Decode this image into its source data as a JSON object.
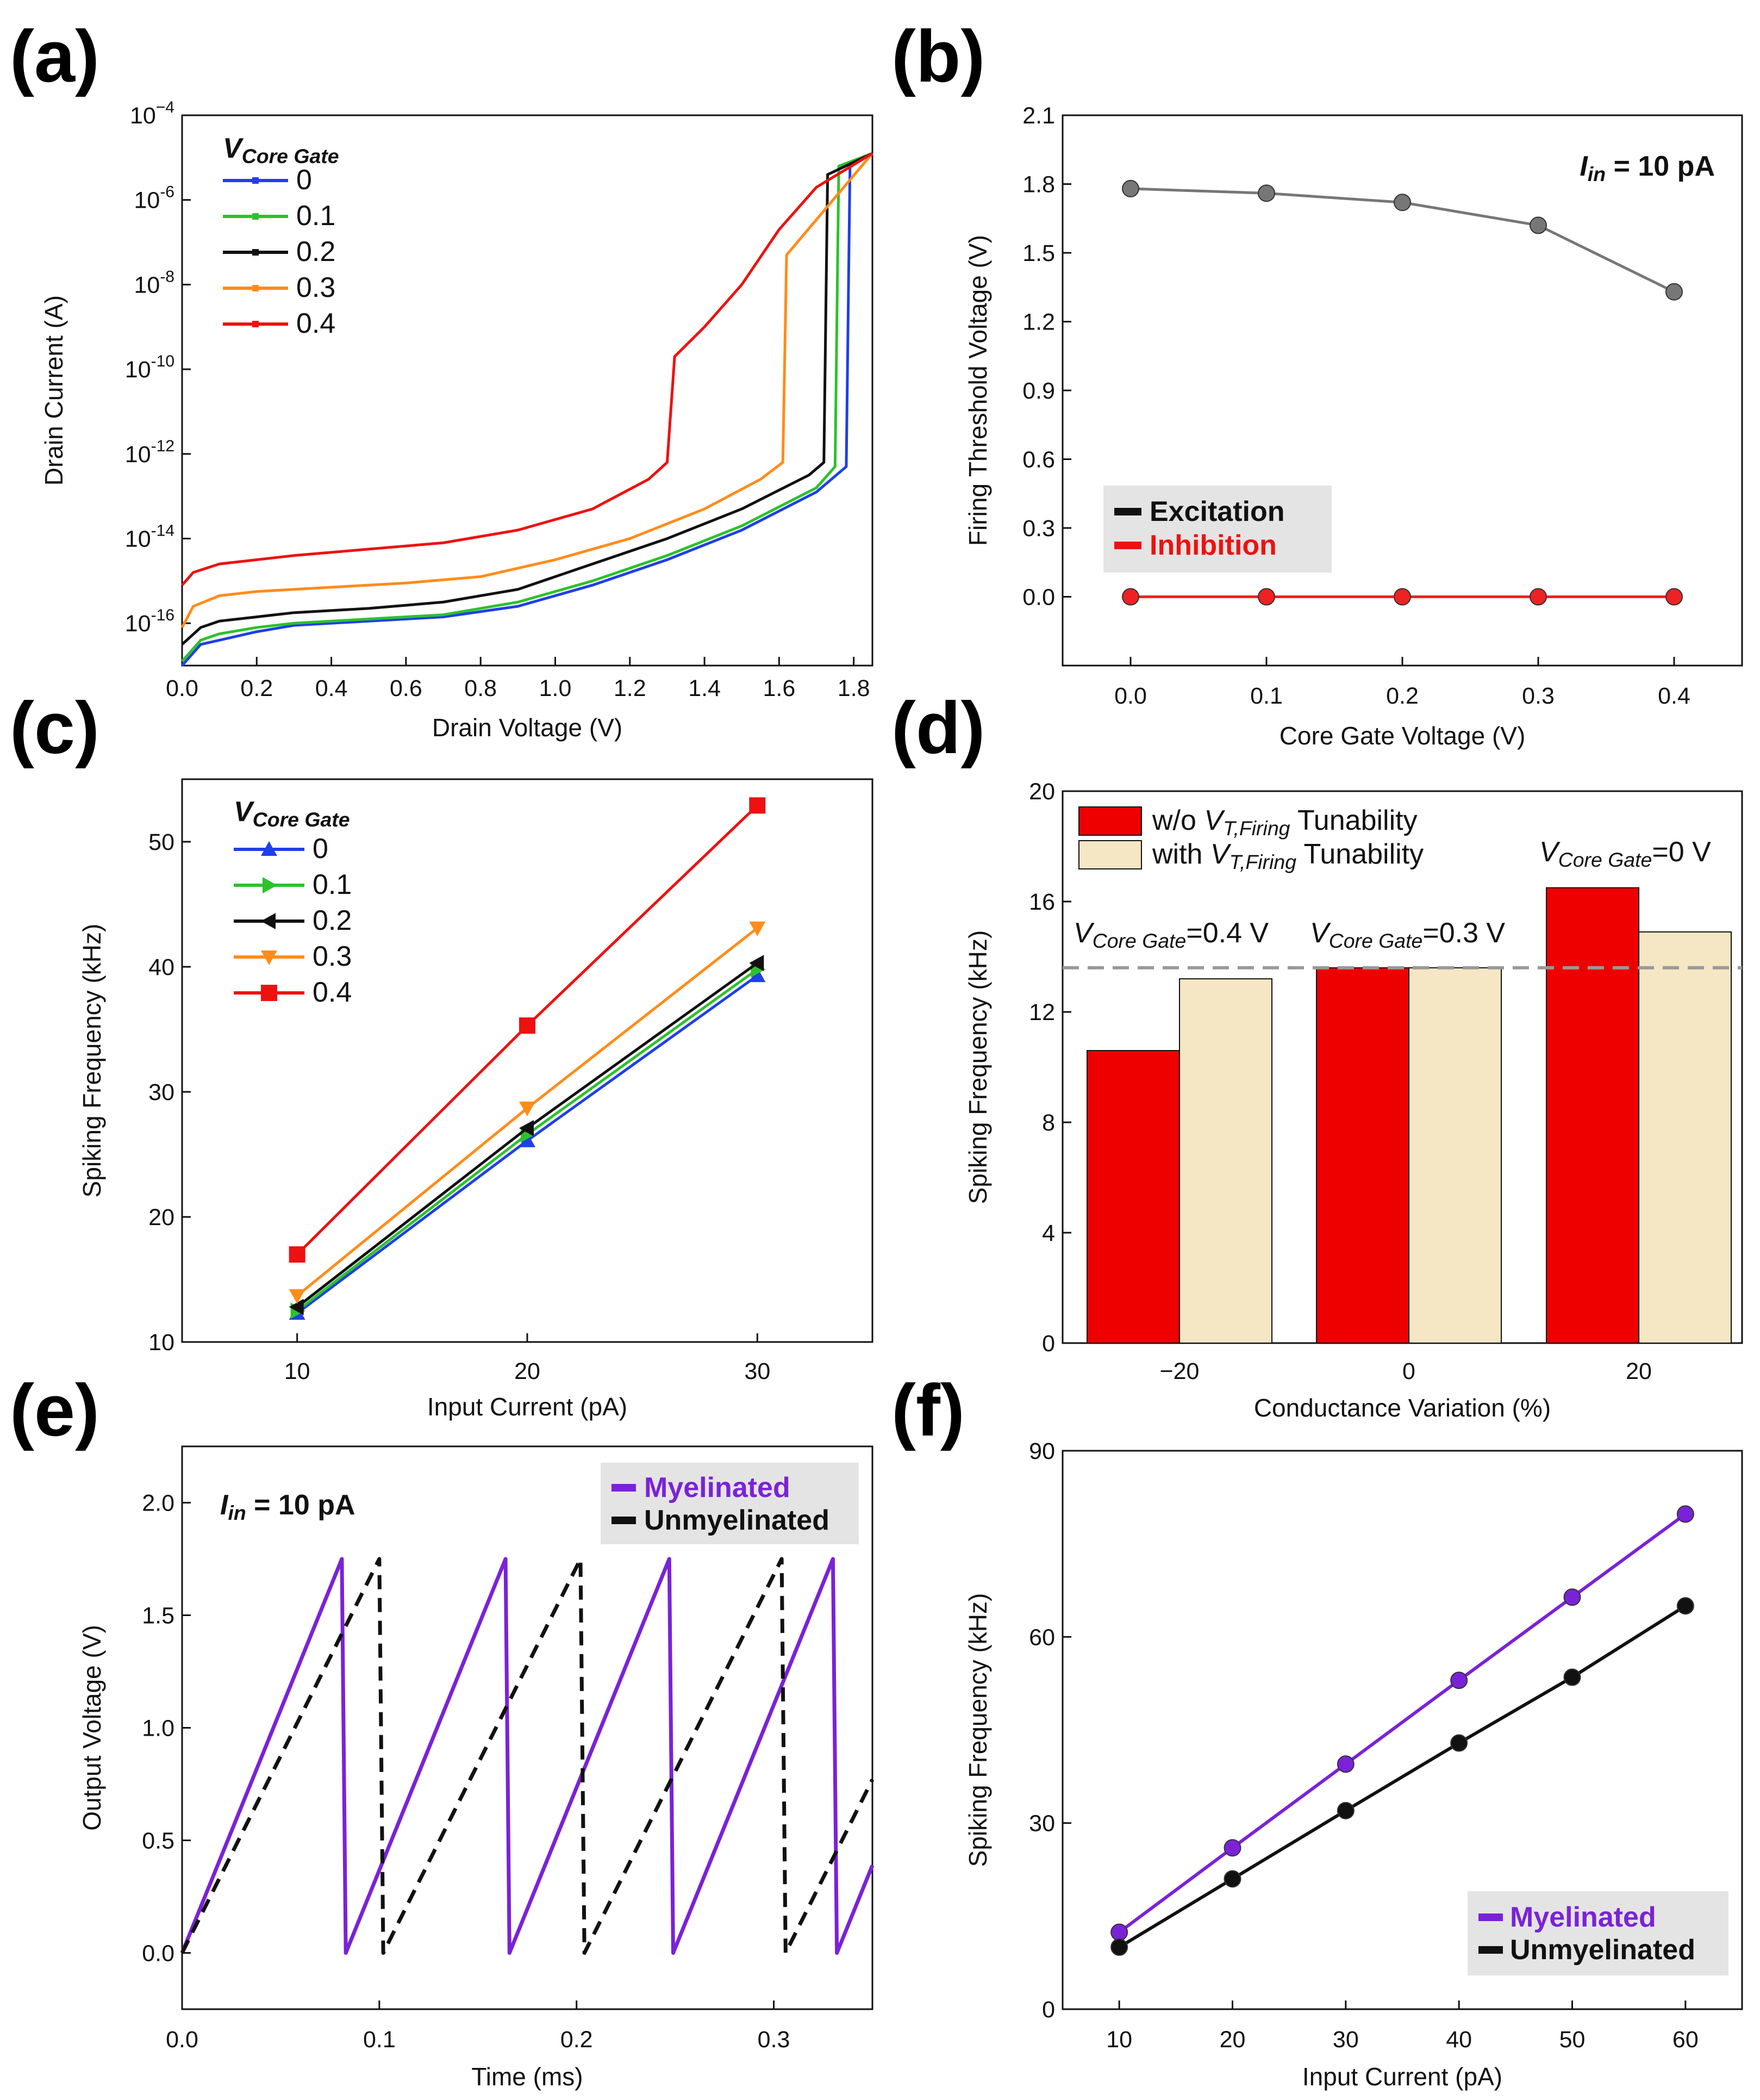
{
  "panels": {
    "a": {
      "label": "(a)",
      "chart_data": {
        "type": "line",
        "xlabel": "Drain Voltage (V)",
        "ylabel": "Drain Current (A)",
        "xlim": [
          0.0,
          1.85
        ],
        "ylim_log10": [
          -17,
          -4
        ],
        "yscale": "log",
        "x_ticks": [
          "0.0",
          "0.2",
          "0.4",
          "0.6",
          "0.8",
          "1.0",
          "1.2",
          "1.4",
          "1.6",
          "1.8"
        ],
        "y_ticks": [
          {
            "base": "10",
            "exp": "−4"
          },
          {
            "base": "10",
            "exp": "-6"
          },
          {
            "base": "10",
            "exp": "-8"
          },
          {
            "base": "10",
            "exp": "-10"
          },
          {
            "base": "10",
            "exp": "-12"
          },
          {
            "base": "10",
            "exp": "-14"
          },
          {
            "base": "10",
            "exp": "-16"
          }
        ],
        "legend_title": "V",
        "legend_title_sub": "Core Gate",
        "series": [
          {
            "name": "0",
            "color": "#1f3fe8",
            "x": [
              0.0,
              0.05,
              0.1,
              0.2,
              0.3,
              0.5,
              0.7,
              0.9,
              1.1,
              1.3,
              1.5,
              1.7,
              1.78,
              1.79,
              1.85
            ],
            "log10y": [
              -17.0,
              -16.5,
              -16.4,
              -16.2,
              -16.05,
              -15.95,
              -15.85,
              -15.6,
              -15.1,
              -14.5,
              -13.8,
              -12.9,
              -12.3,
              -5.2,
              -4.9
            ]
          },
          {
            "name": "0.1",
            "color": "#2cc22c",
            "x": [
              0.0,
              0.05,
              0.1,
              0.2,
              0.3,
              0.5,
              0.7,
              0.9,
              1.1,
              1.3,
              1.5,
              1.7,
              1.75,
              1.76,
              1.85
            ],
            "log10y": [
              -16.9,
              -16.4,
              -16.25,
              -16.1,
              -16.0,
              -15.9,
              -15.8,
              -15.5,
              -15.0,
              -14.4,
              -13.7,
              -12.8,
              -12.3,
              -5.2,
              -4.9
            ]
          },
          {
            "name": "0.2",
            "color": "#111111",
            "x": [
              0.0,
              0.05,
              0.1,
              0.2,
              0.3,
              0.5,
              0.7,
              0.9,
              1.1,
              1.3,
              1.5,
              1.68,
              1.72,
              1.73,
              1.85
            ],
            "log10y": [
              -16.5,
              -16.1,
              -15.95,
              -15.85,
              -15.75,
              -15.65,
              -15.5,
              -15.2,
              -14.6,
              -14.0,
              -13.3,
              -12.5,
              -12.2,
              -5.4,
              -4.9
            ]
          },
          {
            "name": "0.3",
            "color": "#ff8c1a",
            "x": [
              0.0,
              0.03,
              0.1,
              0.2,
              0.4,
              0.6,
              0.8,
              1.0,
              1.2,
              1.4,
              1.55,
              1.61,
              1.62,
              1.85
            ],
            "log10y": [
              -16.1,
              -15.6,
              -15.35,
              -15.25,
              -15.15,
              -15.05,
              -14.9,
              -14.5,
              -14.0,
              -13.3,
              -12.6,
              -12.2,
              -7.3,
              -4.9
            ]
          },
          {
            "name": "0.4",
            "color": "#ee1111",
            "x": [
              0.0,
              0.03,
              0.1,
              0.3,
              0.5,
              0.7,
              0.9,
              1.1,
              1.25,
              1.3,
              1.32,
              1.4,
              1.5,
              1.6,
              1.7,
              1.85
            ],
            "log10y": [
              -15.1,
              -14.8,
              -14.6,
              -14.4,
              -14.25,
              -14.1,
              -13.8,
              -13.3,
              -12.6,
              -12.2,
              -9.7,
              -9.0,
              -8.0,
              -6.7,
              -5.7,
              -4.9
            ]
          }
        ]
      }
    },
    "b": {
      "label": "(b)",
      "chart_data": {
        "type": "line",
        "xlabel": "Core Gate Voltage (V)",
        "ylabel": "Firing Threshold Voltage (V)",
        "xlim": [
          -0.05,
          0.45
        ],
        "ylim": [
          -0.3,
          2.1
        ],
        "x_ticks": [
          "0.0",
          "0.1",
          "0.2",
          "0.3",
          "0.4"
        ],
        "y_ticks": [
          "0.0",
          "0.3",
          "0.6",
          "0.9",
          "1.2",
          "1.5",
          "1.8",
          "2.1"
        ],
        "annotation_main": "I",
        "annotation_sub": "in",
        "annotation_rest": " = 10 pA",
        "categories": [
          0.0,
          0.1,
          0.2,
          0.3,
          0.4
        ],
        "series": [
          {
            "name": "Excitation",
            "color": "#777777",
            "legend_color": "#111111",
            "values": [
              1.78,
              1.76,
              1.72,
              1.62,
              1.33
            ]
          },
          {
            "name": "Inhibition",
            "color": "#ee2222",
            "legend_color": "#ee1111",
            "values": [
              0.0,
              0.0,
              0.0,
              0.0,
              0.0
            ]
          }
        ]
      }
    },
    "c": {
      "label": "(c)",
      "chart_data": {
        "type": "line",
        "xlabel": "Input Current (pA)",
        "ylabel": "Spiking Frequency (kHz)",
        "xlim": [
          5,
          35
        ],
        "ylim": [
          10,
          55
        ],
        "x_ticks": [
          "10",
          "20",
          "30"
        ],
        "y_ticks": [
          "10",
          "20",
          "30",
          "40",
          "50"
        ],
        "legend_title": "V",
        "legend_title_sub": "Core Gate",
        "categories": [
          10,
          20,
          30
        ],
        "series": [
          {
            "name": "0",
            "color": "#1f3fe8",
            "marker": "tri-up",
            "values": [
              12.3,
              26.1,
              39.3
            ]
          },
          {
            "name": "0.1",
            "color": "#2cc22c",
            "marker": "tri-right",
            "values": [
              12.5,
              26.6,
              39.8
            ]
          },
          {
            "name": "0.2",
            "color": "#111111",
            "marker": "tri-left",
            "values": [
              12.8,
              27.1,
              40.3
            ]
          },
          {
            "name": "0.3",
            "color": "#ff8c1a",
            "marker": "tri-down",
            "values": [
              13.7,
              28.7,
              43.1
            ]
          },
          {
            "name": "0.4",
            "color": "#ee1111",
            "marker": "square",
            "values": [
              17.0,
              35.3,
              52.9
            ]
          }
        ]
      }
    },
    "d": {
      "label": "(d)",
      "chart_data": {
        "type": "bar",
        "xlabel": "Conductance Variation (%)",
        "ylabel": "Spiking Frequency (kHz)",
        "ylim": [
          0,
          20
        ],
        "y_ticks": [
          "0",
          "4",
          "8",
          "12",
          "16",
          "20"
        ],
        "categories": [
          "−20",
          "0",
          "20"
        ],
        "series": [
          {
            "name_pre": "w/o ",
            "name_it": "V",
            "name_sub": "T,Firing",
            "name_post": " Tunability",
            "color": "#ee0000",
            "values": [
              10.6,
              13.6,
              16.5
            ]
          },
          {
            "name_pre": "with ",
            "name_it": "V",
            "name_sub": "T,Firing",
            "name_post": " Tunability",
            "color": "#f5e6c4",
            "values": [
              13.2,
              13.6,
              14.9
            ]
          }
        ],
        "reference_line": 13.6,
        "annotations": [
          {
            "pre": "V",
            "sub": "Core Gate",
            "post": "=0.4 V"
          },
          {
            "pre": "V",
            "sub": "Core Gate",
            "post": "=0.3 V"
          },
          {
            "pre": "V",
            "sub": "Core Gate",
            "post": "=0 V"
          }
        ]
      }
    },
    "e": {
      "label": "(e)",
      "chart_data": {
        "type": "line",
        "xlabel": "Time (ms)",
        "ylabel": "Output Voltage (V)",
        "xlim": [
          0.0,
          0.35
        ],
        "ylim": [
          -0.25,
          2.25
        ],
        "x_ticks": [
          "0.0",
          "0.1",
          "0.2",
          "0.3"
        ],
        "y_ticks": [
          "0.0",
          "0.5",
          "1.0",
          "1.5",
          "2.0"
        ],
        "annotation_main": "I",
        "annotation_sub": "in",
        "annotation_rest": " = 10 pA",
        "series": [
          {
            "name": "Myelinated",
            "color": "#7a22d8",
            "style": "solid",
            "period": 0.081,
            "peak": 1.75,
            "t_end": 0.35
          },
          {
            "name": "Unmyelinated",
            "color": "#111111",
            "style": "dashed",
            "period": 0.1,
            "peak": 1.75,
            "t_end": 0.35
          }
        ]
      }
    },
    "f": {
      "label": "(f)",
      "chart_data": {
        "type": "line",
        "xlabel": "Input Current (pA)",
        "ylabel": "Spiking Frequency (kHz)",
        "xlim": [
          5,
          65
        ],
        "ylim": [
          0,
          90
        ],
        "x_ticks": [
          "10",
          "20",
          "30",
          "40",
          "50",
          "60"
        ],
        "y_ticks": [
          "0",
          "30",
          "60",
          "90"
        ],
        "categories": [
          10,
          20,
          30,
          40,
          50,
          60
        ],
        "series": [
          {
            "name": "Myelinated",
            "color": "#7a22d8",
            "values": [
              12.4,
              26.0,
              39.5,
              53.0,
              66.4,
              79.8
            ]
          },
          {
            "name": "Unmyelinated",
            "color": "#111111",
            "values": [
              10.0,
              21.0,
              32.0,
              42.9,
              53.5,
              65.0
            ]
          }
        ]
      }
    }
  }
}
